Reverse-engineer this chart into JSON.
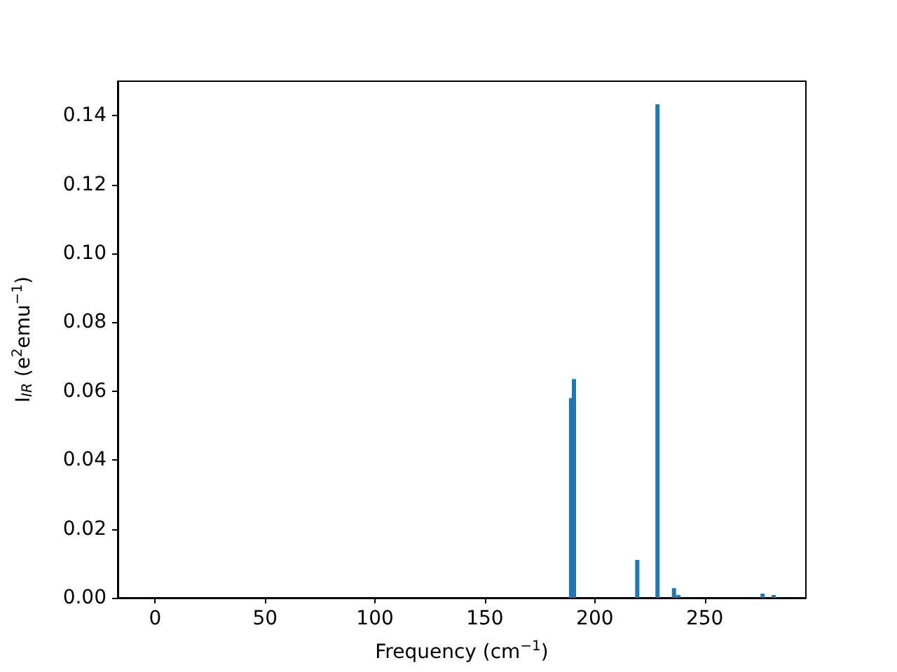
{
  "chart_data": {
    "type": "bar",
    "xlabel": "Frequency (cm$^{−1}$)",
    "ylabel": "I$_{IR}$ (e$^{2}$emu$^{−1}$)",
    "x": [
      189.2,
      190.5,
      219.3,
      228.5,
      236,
      238,
      276.3,
      281.3
    ],
    "series": [
      {
        "color": "#1f77b4",
        "values": [
          0.058,
          0.0635,
          0.011,
          0.1433,
          0.0028,
          0.0008,
          0.0012,
          0.0008
        ]
      }
    ],
    "xlim": [
      -17,
      296
    ],
    "ylim": [
      0,
      0.15
    ],
    "xticks": [
      0,
      50,
      100,
      150,
      200,
      250
    ],
    "yticks": [
      {
        "value": 0,
        "label": "0.00"
      },
      {
        "value": 0.02,
        "label": "0.02"
      },
      {
        "value": 0.04,
        "label": "0.04"
      },
      {
        "value": 0.06,
        "label": "0.06"
      },
      {
        "value": 0.08,
        "label": "0.08"
      },
      {
        "value": 0.1,
        "label": "0.10"
      },
      {
        "value": 0.12,
        "label": "0.12"
      },
      {
        "value": 0.14,
        "label": "0.14"
      }
    ],
    "grid": false
  }
}
